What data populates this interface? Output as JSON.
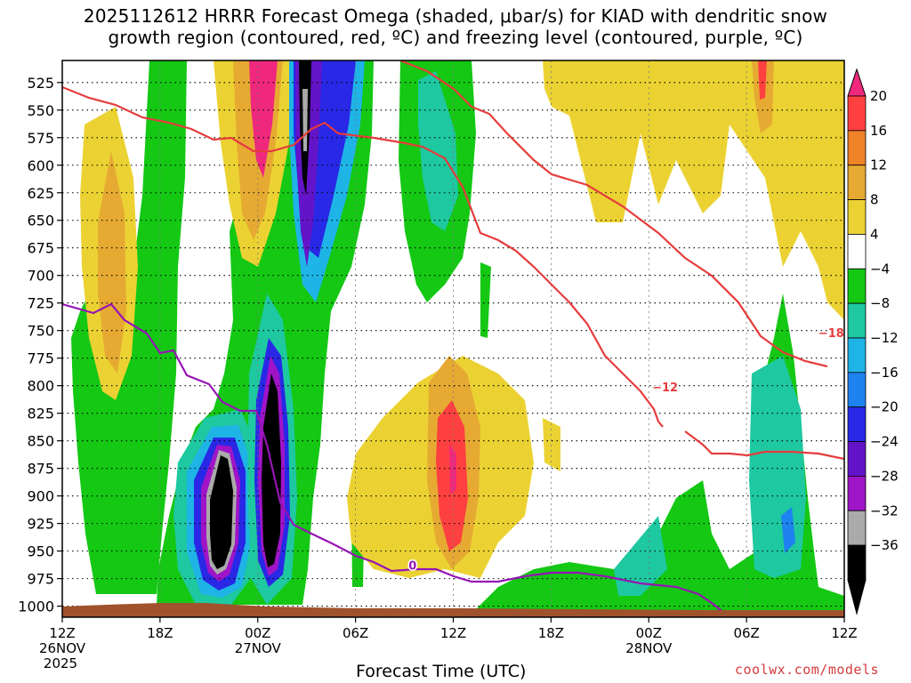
{
  "chart_data": {
    "type": "heatmap",
    "title_line1": "2025112612 HRRR Forecast Omega (shaded, μbar/s) for KIAD with dendritic snow",
    "title_line2": "growth region (contoured, red, ºC) and freezing level (contoured, purple, ºC)",
    "xlabel": "Forecast Time (UTC)",
    "credit": "coolwx.com/models",
    "y_ticks": [
      "525",
      "550",
      "575",
      "600",
      "625",
      "650",
      "675",
      "700",
      "725",
      "750",
      "775",
      "800",
      "825",
      "850",
      "875",
      "900",
      "925",
      "950",
      "975",
      "1000"
    ],
    "y_values": [
      525,
      550,
      575,
      600,
      625,
      650,
      675,
      700,
      725,
      750,
      775,
      800,
      825,
      850,
      875,
      900,
      925,
      950,
      975,
      1000
    ],
    "ylim_hpa": [
      505,
      1010
    ],
    "x_ticks": [
      {
        "hours": 0,
        "label": "12Z",
        "date": "26NOV",
        "year": "2025"
      },
      {
        "hours": 6,
        "label": "18Z",
        "date": "",
        "year": ""
      },
      {
        "hours": 12,
        "label": "00Z",
        "date": "27NOV",
        "year": ""
      },
      {
        "hours": 18,
        "label": "06Z",
        "date": "",
        "year": ""
      },
      {
        "hours": 24,
        "label": "12Z",
        "date": "",
        "year": ""
      },
      {
        "hours": 30,
        "label": "18Z",
        "date": "",
        "year": ""
      },
      {
        "hours": 36,
        "label": "00Z",
        "date": "28NOV",
        "year": ""
      },
      {
        "hours": 42,
        "label": "06Z",
        "date": "",
        "year": ""
      },
      {
        "hours": 48,
        "label": "12Z",
        "date": "",
        "year": ""
      }
    ],
    "xlim_hours": [
      0,
      48
    ],
    "colorbar": {
      "labels": [
        "20",
        "16",
        "12",
        "8",
        "4",
        "−4",
        "−8",
        "−12",
        "−16",
        "−20",
        "−24",
        "−28",
        "−32",
        "−36"
      ],
      "colors": [
        "#ff4040",
        "#f08228",
        "#e6aa32",
        "#ebd232",
        "#ffffff",
        "#14c814",
        "#1ec8a0",
        "#1eb4e6",
        "#1e82f0",
        "#2828e6",
        "#6414c8",
        "#a014c8",
        "#aaaaaa",
        "#000000"
      ],
      "top_arrow_color": "#f0287d",
      "bottom_arrow_color": "#000000"
    },
    "contours": {
      "dendritic_labels": [
        {
          "text": "−18",
          "hours": 47.2,
          "hpa": 752
        },
        {
          "text": "−12",
          "hours": 37.0,
          "hpa": 801
        }
      ],
      "freezing_label": {
        "text": "0",
        "hours": 21.5,
        "hpa": 963
      },
      "dendritic_color": "#e63c3c",
      "freezing_color": "#9614b4"
    },
    "surface_color": "#a0522d"
  }
}
